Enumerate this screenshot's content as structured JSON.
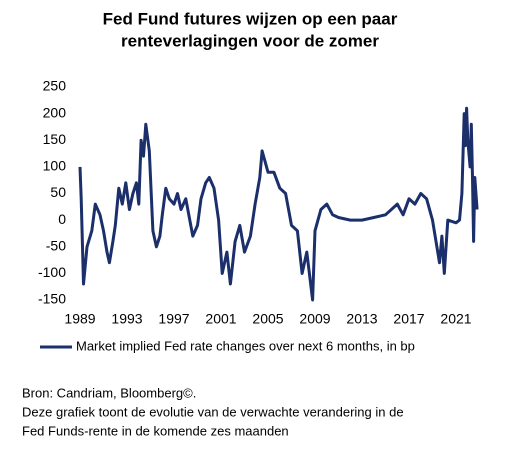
{
  "chart_data": {
    "type": "line",
    "title": [
      "Fed Fund futures wijzen op een paar",
      "renteverlagingen voor de zomer"
    ],
    "xlim": [
      1989,
      2023
    ],
    "xticks": [
      1989,
      1993,
      1997,
      2001,
      2005,
      2009,
      2013,
      2017,
      2021
    ],
    "ylim": [
      -150,
      250
    ],
    "yticks": [
      -150,
      -100,
      -50,
      0,
      50,
      100,
      150,
      200,
      250
    ],
    "series": [
      {
        "name": "Market implied Fed rate changes over next 6 months, in bp",
        "color": "#1b2f6b",
        "x": [
          1989.0,
          1989.1,
          1989.3,
          1989.6,
          1990.0,
          1990.3,
          1990.7,
          1991.0,
          1991.3,
          1991.5,
          1991.8,
          1992.0,
          1992.3,
          1992.6,
          1992.9,
          1993.2,
          1993.5,
          1993.8,
          1994.0,
          1994.2,
          1994.4,
          1994.6,
          1994.9,
          1995.2,
          1995.5,
          1995.8,
          1996.0,
          1996.3,
          1996.6,
          1997.0,
          1997.3,
          1997.6,
          1998.0,
          1998.6,
          1999.0,
          1999.3,
          1999.7,
          2000.0,
          2000.4,
          2000.8,
          2001.1,
          2001.5,
          2001.8,
          2002.2,
          2002.6,
          2003.0,
          2003.5,
          2003.9,
          2004.3,
          2004.5,
          2005.0,
          2005.5,
          2006.0,
          2006.5,
          2007.0,
          2007.5,
          2007.9,
          2008.3,
          2008.8,
          2009.0,
          2009.5,
          2010.0,
          2010.5,
          2011.0,
          2012.0,
          2013.0,
          2014.0,
          2015.0,
          2016.0,
          2016.5,
          2017.0,
          2017.5,
          2018.0,
          2018.5,
          2019.0,
          2019.3,
          2019.6,
          2019.8,
          2020.0,
          2020.3,
          2021.0,
          2021.3,
          2021.5,
          2021.7,
          2021.8,
          2021.9,
          2022.0,
          2022.2,
          2022.3,
          2022.4,
          2022.5,
          2022.6,
          2022.8
        ],
        "values": [
          100,
          40,
          -120,
          -50,
          -20,
          30,
          10,
          -20,
          -60,
          -80,
          -40,
          -10,
          60,
          30,
          70,
          20,
          50,
          70,
          30,
          150,
          120,
          180,
          130,
          -20,
          -50,
          -30,
          10,
          60,
          40,
          30,
          50,
          20,
          40,
          -30,
          -10,
          40,
          70,
          80,
          60,
          0,
          -100,
          -60,
          -120,
          -40,
          -10,
          -60,
          -30,
          30,
          80,
          130,
          90,
          90,
          60,
          50,
          -10,
          -20,
          -100,
          -60,
          -150,
          -20,
          20,
          30,
          10,
          5,
          0,
          0,
          5,
          10,
          30,
          10,
          40,
          30,
          50,
          40,
          0,
          -40,
          -80,
          -30,
          -100,
          0,
          -5,
          0,
          50,
          200,
          140,
          210,
          150,
          100,
          180,
          80,
          -40,
          80,
          20
        ]
      }
    ],
    "source": "Bron: Candriam, Bloomberg©.",
    "note": [
      "Deze grafiek toont de evolutie van de verwachte verandering in de",
      "Fed Funds-rente in de komende zes maanden"
    ]
  }
}
